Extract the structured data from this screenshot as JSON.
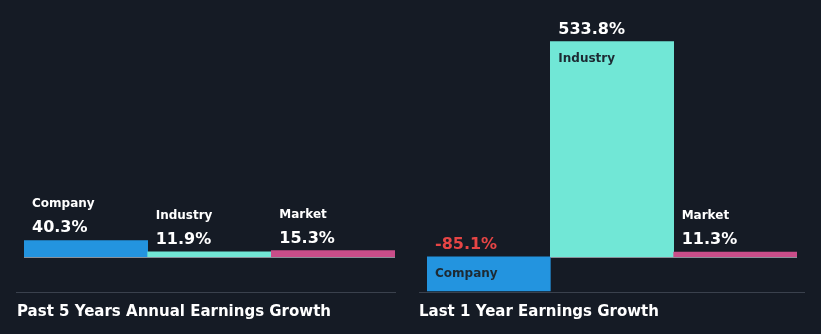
{
  "chart_data": [
    {
      "type": "bar",
      "title": "Past 5 Years Annual Earnings Growth",
      "categories": [
        "Company",
        "Industry",
        "Market"
      ],
      "values": [
        40.3,
        11.9,
        15.3
      ],
      "value_labels": [
        "40.3%",
        "11.9%",
        "15.3%"
      ],
      "colors": [
        "#2394df",
        "#71e7d6",
        "#c94d89"
      ],
      "ylim": [
        -90,
        560
      ],
      "data_labels": true,
      "tick_labels": false,
      "grid": false
    },
    {
      "type": "bar",
      "title": "Last 1 Year Earnings Growth",
      "categories": [
        "Company",
        "Industry",
        "Market"
      ],
      "values": [
        -85.1,
        533.8,
        11.3
      ],
      "value_labels": [
        "-85.1%",
        "533.8%",
        "11.3%"
      ],
      "colors": [
        "#2394df",
        "#71e7d6",
        "#c94d89"
      ],
      "ylim": [
        -90,
        560
      ],
      "data_labels": true,
      "tick_labels": false,
      "grid": false
    }
  ]
}
